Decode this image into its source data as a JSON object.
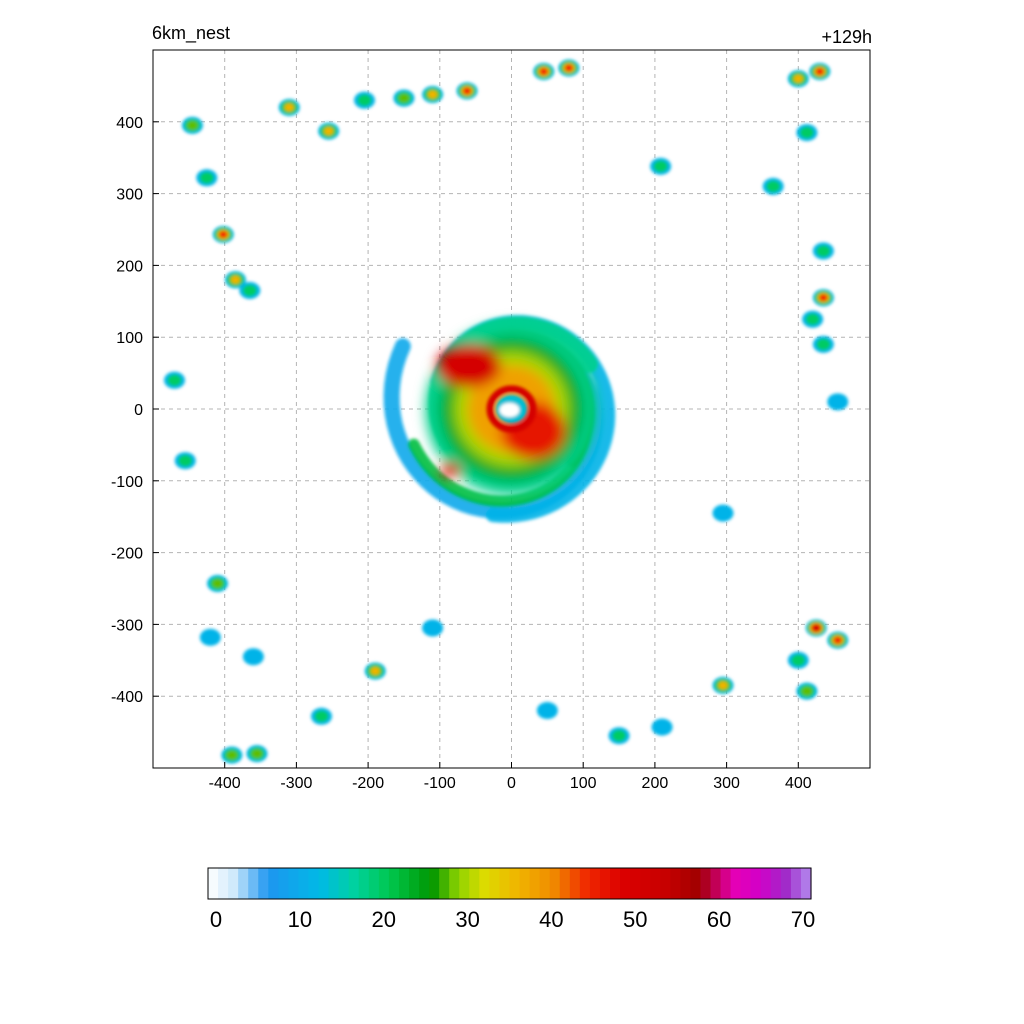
{
  "chart_data": {
    "type": "heatmap",
    "title": "6km_nest",
    "lead_time": "+129h",
    "xlabel": "",
    "ylabel": "",
    "xlim": [
      -500,
      500
    ],
    "ylim": [
      -500,
      500
    ],
    "xticks": [
      -400,
      -300,
      -200,
      -100,
      0,
      100,
      200,
      300,
      400
    ],
    "yticks": [
      -400,
      -300,
      -200,
      -100,
      0,
      100,
      200,
      300,
      400
    ],
    "grid": true,
    "colorbar": {
      "min": 0,
      "max": 70,
      "tick_values": [
        0,
        10,
        20,
        30,
        40,
        50,
        60,
        70
      ],
      "tick_labels": [
        "0",
        "10",
        "20",
        "30",
        "40",
        "50",
        "60",
        "70"
      ],
      "stops": [
        {
          "value": 0,
          "color": "#ffffff"
        },
        {
          "value": 3,
          "color": "#cfe9fb"
        },
        {
          "value": 7,
          "color": "#1e96f0"
        },
        {
          "value": 13,
          "color": "#00b9e6"
        },
        {
          "value": 17,
          "color": "#00d2a0"
        },
        {
          "value": 21,
          "color": "#00c850"
        },
        {
          "value": 26,
          "color": "#009600"
        },
        {
          "value": 29,
          "color": "#8cd200"
        },
        {
          "value": 32,
          "color": "#dcdc00"
        },
        {
          "value": 36,
          "color": "#f0b400"
        },
        {
          "value": 40,
          "color": "#f08c00"
        },
        {
          "value": 44,
          "color": "#f02800"
        },
        {
          "value": 48,
          "color": "#dc0000"
        },
        {
          "value": 53,
          "color": "#c80000"
        },
        {
          "value": 57,
          "color": "#a00000"
        },
        {
          "value": 61,
          "color": "#e600b4"
        },
        {
          "value": 64,
          "color": "#d200c8"
        },
        {
          "value": 67,
          "color": "#a028c8"
        },
        {
          "value": 70,
          "color": "#b48cf0"
        }
      ]
    },
    "storm": {
      "center": [
        0,
        0
      ],
      "core": [
        {
          "x": 0,
          "y": 0,
          "rx": 60,
          "ry": 60,
          "value": 38
        },
        {
          "x": -60,
          "y": 60,
          "rx": 45,
          "ry": 30,
          "value": 50
        },
        {
          "x": 30,
          "y": -30,
          "rx": 45,
          "ry": 40,
          "value": 46
        },
        {
          "x": -85,
          "y": -85,
          "rx": 14,
          "ry": 10,
          "value": 48
        }
      ]
    },
    "cells": [
      {
        "x": -470,
        "y": 40,
        "value": 25
      },
      {
        "x": -445,
        "y": 395,
        "value": 28
      },
      {
        "x": -425,
        "y": 322,
        "value": 22
      },
      {
        "x": -402,
        "y": 243,
        "value": 44
      },
      {
        "x": -385,
        "y": 180,
        "value": 42
      },
      {
        "x": -365,
        "y": 165,
        "value": 24
      },
      {
        "x": -310,
        "y": 420,
        "value": 36
      },
      {
        "x": -255,
        "y": 387,
        "value": 40
      },
      {
        "x": -205,
        "y": 430,
        "value": 24
      },
      {
        "x": -150,
        "y": 433,
        "value": 30
      },
      {
        "x": -110,
        "y": 438,
        "value": 40
      },
      {
        "x": -62,
        "y": 443,
        "value": 46
      },
      {
        "x": 45,
        "y": 470,
        "value": 44
      },
      {
        "x": 80,
        "y": 475,
        "value": 44
      },
      {
        "x": 208,
        "y": 338,
        "value": 24
      },
      {
        "x": 365,
        "y": 310,
        "value": 20
      },
      {
        "x": 400,
        "y": 460,
        "value": 42
      },
      {
        "x": 430,
        "y": 470,
        "value": 44
      },
      {
        "x": 412,
        "y": 385,
        "value": 22
      },
      {
        "x": 435,
        "y": 220,
        "value": 22
      },
      {
        "x": 435,
        "y": 155,
        "value": 46
      },
      {
        "x": 420,
        "y": 125,
        "value": 20
      },
      {
        "x": 435,
        "y": 90,
        "value": 22
      },
      {
        "x": 455,
        "y": 10,
        "value": 16
      },
      {
        "x": -455,
        "y": -72,
        "value": 22
      },
      {
        "x": -410,
        "y": -243,
        "value": 32
      },
      {
        "x": -420,
        "y": -318,
        "value": 18
      },
      {
        "x": -360,
        "y": -345,
        "value": 14
      },
      {
        "x": -190,
        "y": -365,
        "value": 36
      },
      {
        "x": -110,
        "y": -305,
        "value": 18
      },
      {
        "x": -265,
        "y": -428,
        "value": 24
      },
      {
        "x": -390,
        "y": -482,
        "value": 34
      },
      {
        "x": -355,
        "y": -480,
        "value": 32
      },
      {
        "x": 50,
        "y": -420,
        "value": 14
      },
      {
        "x": 150,
        "y": -455,
        "value": 22
      },
      {
        "x": 295,
        "y": -385,
        "value": 38
      },
      {
        "x": 295,
        "y": -145,
        "value": 12
      },
      {
        "x": 425,
        "y": -305,
        "value": 50
      },
      {
        "x": 455,
        "y": -322,
        "value": 46
      },
      {
        "x": 400,
        "y": -350,
        "value": 26
      },
      {
        "x": 412,
        "y": -393,
        "value": 32
      },
      {
        "x": 210,
        "y": -443,
        "value": 14
      }
    ]
  }
}
